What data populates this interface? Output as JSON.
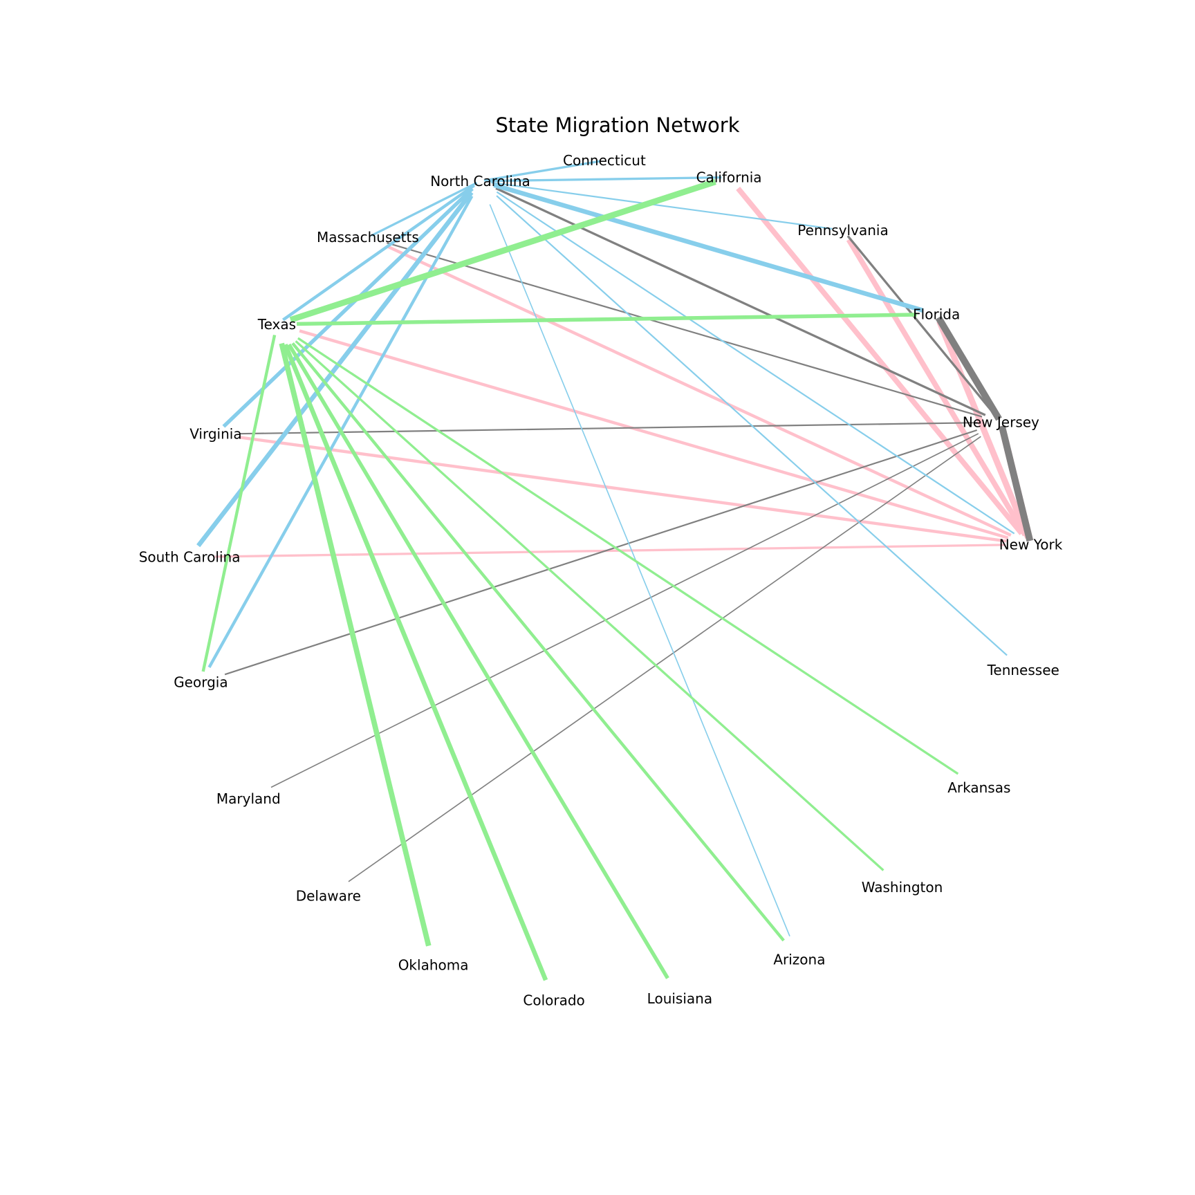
{
  "title": "State Migration Network",
  "colors": {
    "New York": "#FFC0CB",
    "New Jersey": "#808080",
    "North Carolina": "#87CEEB",
    "Texas": "#90EE90"
  },
  "chart_data": {
    "type": "network",
    "title": "State Migration Network",
    "nodes": [
      {
        "id": "North Carolina",
        "label": "North Carolina"
      },
      {
        "id": "Connecticut",
        "label": "Connecticut"
      },
      {
        "id": "California",
        "label": "California"
      },
      {
        "id": "Pennsylvania",
        "label": "Pennsylvania"
      },
      {
        "id": "Florida",
        "label": "Florida"
      },
      {
        "id": "New Jersey",
        "label": "New Jersey"
      },
      {
        "id": "New York",
        "label": "New York"
      },
      {
        "id": "Tennessee",
        "label": "Tennessee"
      },
      {
        "id": "Arkansas",
        "label": "Arkansas"
      },
      {
        "id": "Washington",
        "label": "Washington"
      },
      {
        "id": "Arizona",
        "label": "Arizona"
      },
      {
        "id": "Louisiana",
        "label": "Louisiana"
      },
      {
        "id": "Colorado",
        "label": "Colorado"
      },
      {
        "id": "Oklahoma",
        "label": "Oklahoma"
      },
      {
        "id": "Delaware",
        "label": "Delaware"
      },
      {
        "id": "Maryland",
        "label": "Maryland"
      },
      {
        "id": "Georgia",
        "label": "Georgia"
      },
      {
        "id": "South Carolina",
        "label": "South Carolina"
      },
      {
        "id": "Virginia",
        "label": "Virginia"
      },
      {
        "id": "Texas",
        "label": "Texas"
      },
      {
        "id": "Massachusetts",
        "label": "Massachusetts"
      }
    ],
    "edges": [
      {
        "source": "New York",
        "target": "Florida",
        "weight": 8
      },
      {
        "source": "New York",
        "target": "New Jersey",
        "weight": 9
      },
      {
        "source": "New York",
        "target": "California",
        "weight": 7
      },
      {
        "source": "New York",
        "target": "Pennsylvania",
        "weight": 7
      },
      {
        "source": "New York",
        "target": "Massachusetts",
        "weight": 4
      },
      {
        "source": "New York",
        "target": "Texas",
        "weight": 4
      },
      {
        "source": "New York",
        "target": "Virginia",
        "weight": 4
      },
      {
        "source": "New York",
        "target": "South Carolina",
        "weight": 3
      },
      {
        "source": "New Jersey",
        "target": "New York",
        "weight": 9
      },
      {
        "source": "New Jersey",
        "target": "Florida",
        "weight": 9
      },
      {
        "source": "New Jersey",
        "target": "Pennsylvania",
        "weight": 3
      },
      {
        "source": "New Jersey",
        "target": "North Carolina",
        "weight": 3
      },
      {
        "source": "New Jersey",
        "target": "Massachusetts",
        "weight": 2
      },
      {
        "source": "New Jersey",
        "target": "Virginia",
        "weight": 2
      },
      {
        "source": "New Jersey",
        "target": "Georgia",
        "weight": 2
      },
      {
        "source": "New Jersey",
        "target": "Maryland",
        "weight": 1.5
      },
      {
        "source": "New Jersey",
        "target": "Delaware",
        "weight": 1.5
      },
      {
        "source": "North Carolina",
        "target": "Florida",
        "weight": 6
      },
      {
        "source": "North Carolina",
        "target": "South Carolina",
        "weight": 6
      },
      {
        "source": "North Carolina",
        "target": "Virginia",
        "weight": 5
      },
      {
        "source": "North Carolina",
        "target": "Georgia",
        "weight": 4
      },
      {
        "source": "North Carolina",
        "target": "Texas",
        "weight": 4
      },
      {
        "source": "North Carolina",
        "target": "Massachusetts",
        "weight": 3
      },
      {
        "source": "North Carolina",
        "target": "California",
        "weight": 3
      },
      {
        "source": "North Carolina",
        "target": "Connecticut",
        "weight": 3
      },
      {
        "source": "North Carolina",
        "target": "Pennsylvania",
        "weight": 2
      },
      {
        "source": "North Carolina",
        "target": "New York",
        "weight": 2
      },
      {
        "source": "North Carolina",
        "target": "Tennessee",
        "weight": 2
      },
      {
        "source": "North Carolina",
        "target": "Arizona",
        "weight": 1.5
      },
      {
        "source": "Texas",
        "target": "California",
        "weight": 8
      },
      {
        "source": "Texas",
        "target": "Oklahoma",
        "weight": 7
      },
      {
        "source": "Texas",
        "target": "Colorado",
        "weight": 6
      },
      {
        "source": "Texas",
        "target": "Louisiana",
        "weight": 5
      },
      {
        "source": "Texas",
        "target": "Florida",
        "weight": 5
      },
      {
        "source": "Texas",
        "target": "Georgia",
        "weight": 4
      },
      {
        "source": "Texas",
        "target": "Arizona",
        "weight": 4
      },
      {
        "source": "Texas",
        "target": "Washington",
        "weight": 3
      },
      {
        "source": "Texas",
        "target": "Arkansas",
        "weight": 3
      }
    ]
  }
}
